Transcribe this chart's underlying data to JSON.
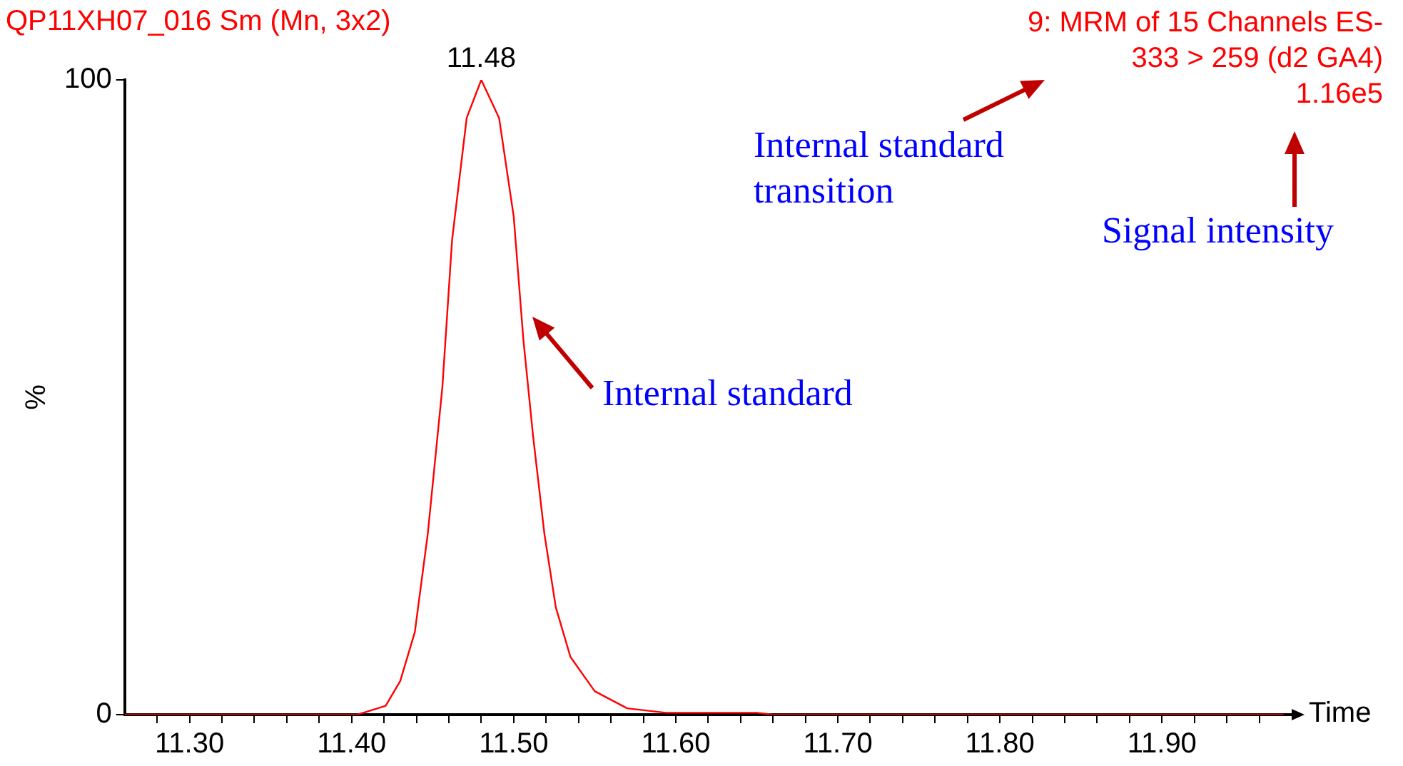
{
  "chart_data": {
    "type": "line",
    "title": "QP11XH07_016 Sm (Mn, 3x2)",
    "subtitle": "9: MRM of 15 Channels ES-\n333 > 259 (d2 GA4)\n1.16e5",
    "xlabel": "Time",
    "ylabel": "%",
    "x": [
      11.26,
      11.3,
      11.35,
      11.4035,
      11.421,
      11.43,
      11.439,
      11.447,
      11.456,
      11.462,
      11.471,
      11.48,
      11.491,
      11.5,
      11.506,
      11.512,
      11.519,
      11.526,
      11.535,
      11.55,
      11.57,
      11.594,
      11.62,
      11.65,
      11.66,
      11.8,
      11.975
    ],
    "series": [
      {
        "color": "#ff0000",
        "values": [
          0,
          0,
          0,
          0,
          1.4,
          5.3,
          13,
          28.5,
          51.6,
          74.8,
          94,
          100,
          94,
          78.5,
          59,
          43.8,
          28.4,
          16.9,
          9.1,
          3.7,
          1,
          0.3,
          0.3,
          0.3,
          0,
          0,
          0
        ]
      }
    ],
    "xlim": [
      11.26,
      11.98
    ],
    "xticks": [
      {
        "value": 11.28,
        "label": null
      },
      {
        "value": 11.3,
        "label": "11.30"
      },
      {
        "value": 11.32,
        "label": null
      },
      {
        "value": 11.34,
        "label": null
      },
      {
        "value": 11.36,
        "label": null
      },
      {
        "value": 11.38,
        "label": null
      },
      {
        "value": 11.4,
        "label": "11.40"
      },
      {
        "value": 11.42,
        "label": null
      },
      {
        "value": 11.44,
        "label": null
      },
      {
        "value": 11.46,
        "label": null
      },
      {
        "value": 11.48,
        "label": null
      },
      {
        "value": 11.5,
        "label": "11.50"
      },
      {
        "value": 11.52,
        "label": null
      },
      {
        "value": 11.54,
        "label": null
      },
      {
        "value": 11.56,
        "label": null
      },
      {
        "value": 11.58,
        "label": null
      },
      {
        "value": 11.6,
        "label": "11.60"
      },
      {
        "value": 11.62,
        "label": null
      },
      {
        "value": 11.64,
        "label": null
      },
      {
        "value": 11.66,
        "label": null
      },
      {
        "value": 11.68,
        "label": null
      },
      {
        "value": 11.7,
        "label": "11.70"
      },
      {
        "value": 11.72,
        "label": null
      },
      {
        "value": 11.74,
        "label": null
      },
      {
        "value": 11.76,
        "label": null
      },
      {
        "value": 11.78,
        "label": null
      },
      {
        "value": 11.8,
        "label": "11.80"
      },
      {
        "value": 11.82,
        "label": null
      },
      {
        "value": 11.84,
        "label": null
      },
      {
        "value": 11.86,
        "label": null
      },
      {
        "value": 11.88,
        "label": null
      },
      {
        "value": 11.9,
        "label": "11.90"
      },
      {
        "value": 11.92,
        "label": null
      },
      {
        "value": 11.94,
        "label": null
      },
      {
        "value": 11.96,
        "label": null
      }
    ],
    "ylim": [
      0,
      100
    ],
    "yticks": [
      0,
      100
    ],
    "grid": false,
    "legend": false,
    "marker": "none",
    "line_style": "solid",
    "annotations": [
      {
        "text": "11.48",
        "x": 11.48,
        "y": 100
      },
      "Internal standard\ntransition",
      "Signal intensity",
      "Internal standard"
    ]
  }
}
